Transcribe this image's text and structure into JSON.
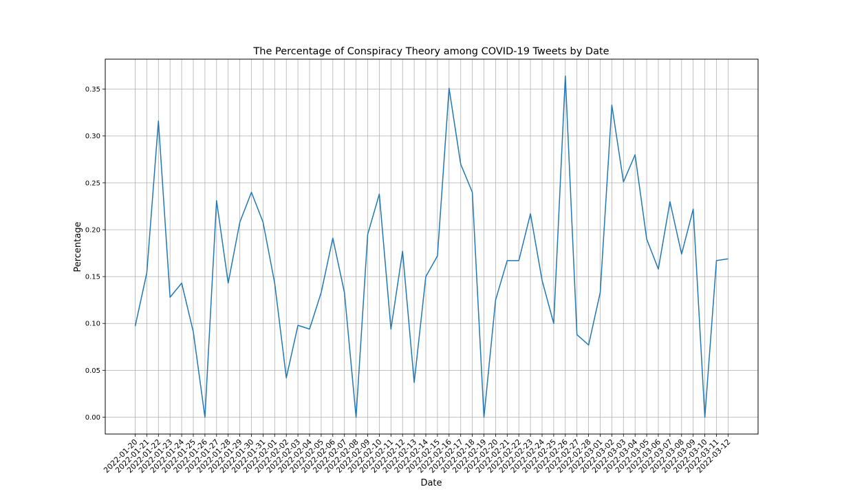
{
  "chart_data": {
    "type": "line",
    "title": "The Percentage of Conspiracy Theory among COVID-19 Tweets by Date",
    "xlabel": "Date",
    "ylabel": "Percentage",
    "grid": true,
    "ylim": [
      -0.018,
      0.382
    ],
    "yticks": [
      0.0,
      0.05,
      0.1,
      0.15,
      0.2,
      0.25,
      0.3,
      0.35
    ],
    "ytick_labels": [
      "0.00",
      "0.05",
      "0.10",
      "0.15",
      "0.20",
      "0.25",
      "0.30",
      "0.35"
    ],
    "line_color": "#1f77b4",
    "categories": [
      "2022-01-20",
      "2022-01-21",
      "2022-01-22",
      "2022-01-23",
      "2022-01-24",
      "2022-01-25",
      "2022-01-26",
      "2022-01-27",
      "2022-01-28",
      "2022-01-29",
      "2022-01-30",
      "2022-01-31",
      "2022-02-01",
      "2022-02-02",
      "2022-02-03",
      "2022-02-04",
      "2022-02-05",
      "2022-02-06",
      "2022-02-07",
      "2022-02-08",
      "2022-02-09",
      "2022-02-10",
      "2022-02-11",
      "2022-02-12",
      "2022-02-13",
      "2022-02-14",
      "2022-02-15",
      "2022-02-16",
      "2022-02-17",
      "2022-02-18",
      "2022-02-19",
      "2022-02-20",
      "2022-02-21",
      "2022-02-22",
      "2022-02-23",
      "2022-02-24",
      "2022-02-25",
      "2022-02-26",
      "2022-02-27",
      "2022-02-28",
      "2022-03-01",
      "2022-03-02",
      "2022-03-03",
      "2022-03-04",
      "2022-03-05",
      "2022-03-06",
      "2022-03-07",
      "2022-03-08",
      "2022-03-09",
      "2022-03-10",
      "2022-03-11",
      "2022-03-12"
    ],
    "values": [
      0.097,
      0.154,
      0.316,
      0.128,
      0.143,
      0.091,
      0.0,
      0.231,
      0.143,
      0.208,
      0.24,
      0.208,
      0.143,
      0.042,
      0.098,
      0.094,
      0.133,
      0.191,
      0.133,
      0.0,
      0.195,
      0.238,
      0.094,
      0.177,
      0.037,
      0.15,
      0.172,
      0.351,
      0.27,
      0.24,
      0.0,
      0.125,
      0.167,
      0.167,
      0.217,
      0.146,
      0.1,
      0.364,
      0.088,
      0.077,
      0.133,
      0.333,
      0.251,
      0.28,
      0.19,
      0.158,
      0.23,
      0.174,
      0.222,
      0.0,
      0.167,
      0.169
    ]
  }
}
